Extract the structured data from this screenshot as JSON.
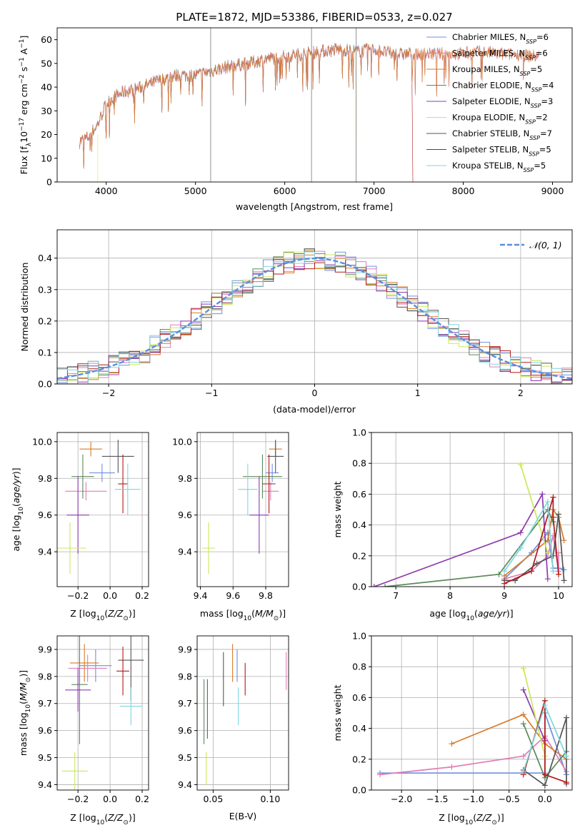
{
  "figure": {
    "title": "PLATE=1872, MJD=53386, FIBERID=0533, z=0.027"
  },
  "colors": {
    "chabrier_miles": "#6f8fe0",
    "salpeter_miles": "#e07db7",
    "kroupa_miles": "#d97a2b",
    "chabrier_elodie": "#5b8a5b",
    "salpeter_elodie": "#8e3bb0",
    "kroupa_elodie": "#c9e858",
    "chabrier_stelib": "#555555",
    "salpeter_stelib": "#b11a1a",
    "kroupa_stelib": "#7fd6dc",
    "normal_curve": "#5a8ee0",
    "grid": "#b0b0b0"
  },
  "chart_data": [
    {
      "id": "spectrum",
      "type": "line",
      "title": "PLATE=1872, MJD=53386, FIBERID=0533, z=0.027",
      "xlabel": "wavelength [Angstrom, rest frame]",
      "ylabel": "Flux [f_λ 10^-17 erg cm^-2 s^-1 A^-1]",
      "xlim": [
        3450,
        9220
      ],
      "ylim": [
        0,
        65
      ],
      "xticks": [
        4000,
        5000,
        6000,
        7000,
        8000,
        9000
      ],
      "yticks": [
        0,
        10,
        20,
        30,
        40,
        50,
        60
      ],
      "grid": false,
      "legend_position": "upper-right",
      "legend": [
        {
          "label": "Chabrier MILES, N_SSP=6",
          "key": "chabrier_miles"
        },
        {
          "label": "Salpeter MILES, N_SSP=6",
          "key": "salpeter_miles"
        },
        {
          "label": "Kroupa MILES, N_SSP=5",
          "key": "kroupa_miles"
        },
        {
          "label": "Chabrier ELODIE, N_SSP=4",
          "key": "chabrier_elodie"
        },
        {
          "label": "Salpeter ELODIE, N_SSP=3",
          "key": "salpeter_elodie"
        },
        {
          "label": "Kroupa ELODIE, N_SSP=2",
          "key": "kroupa_elodie"
        },
        {
          "label": "Chabrier STELIB, N_SSP=7",
          "key": "chabrier_stelib"
        },
        {
          "label": "Salpeter STELIB, N_SSP=5",
          "key": "salpeter_stelib"
        },
        {
          "label": "Kroupa STELIB, N_SSP=5",
          "key": "kroupa_stelib"
        }
      ],
      "continuum": {
        "x": [
          3700,
          3800,
          3900,
          4000,
          4100,
          4200,
          4400,
          4600,
          4800,
          5000,
          5200,
          5400,
          5600,
          5800,
          6000,
          6200,
          6400,
          6600,
          6800,
          7000,
          7200,
          7400,
          7600,
          7800,
          8000,
          8200,
          8400,
          8600,
          8800
        ],
        "y": [
          17,
          19,
          24,
          33,
          36,
          38,
          40,
          43,
          45,
          45,
          47,
          49,
          50,
          52,
          53,
          54,
          55,
          56,
          55,
          56,
          54,
          54,
          54,
          54,
          54,
          55,
          54,
          54,
          53
        ]
      },
      "series_ranges": {
        "miles_elodie_stelib_start": 3700,
        "elodie_end": 6800,
        "stelib_end": 7430,
        "miles_end": 8850
      }
    },
    {
      "id": "residuals",
      "type": "histogram",
      "xlabel": "(data-model)/error",
      "ylabel": "Normed distribution",
      "xlim": [
        -2.5,
        2.5
      ],
      "ylim": [
        0,
        0.49
      ],
      "xticks": [
        -2,
        -1,
        0,
        1,
        2
      ],
      "yticks": [
        0.0,
        0.1,
        0.2,
        0.3,
        0.4
      ],
      "grid": true,
      "legend_position": "upper-right",
      "legend": [
        {
          "label": "𝒩(0, 1)",
          "key": "normal_curve"
        }
      ],
      "bin_width": 0.1
    },
    {
      "id": "age_vs_Z",
      "type": "errorbar",
      "xlabel": "Z [log10(Z/Z⊙)]",
      "ylabel": "age  [log10(age/yr)]",
      "xlim": [
        -0.33,
        0.24
      ],
      "ylim": [
        9.21,
        10.05
      ],
      "xticks": [
        -0.2,
        0.0,
        0.2
      ],
      "yticks": [
        9.4,
        9.6,
        9.8,
        10.0
      ],
      "grid": true,
      "points": [
        {
          "key": "chabrier_miles",
          "x": -0.05,
          "y": 9.83,
          "xerr": 0.08,
          "yerr": 0.05
        },
        {
          "key": "salpeter_miles",
          "x": -0.15,
          "y": 9.73,
          "xerr": 0.13,
          "yerr": 0.05
        },
        {
          "key": "kroupa_miles",
          "x": -0.12,
          "y": 9.96,
          "xerr": 0.07,
          "yerr": 0.04
        },
        {
          "key": "chabrier_elodie",
          "x": -0.17,
          "y": 9.81,
          "xerr": 0.07,
          "yerr": 0.12
        },
        {
          "key": "salpeter_elodie",
          "x": -0.2,
          "y": 9.6,
          "xerr": 0.07,
          "yerr": 0.21
        },
        {
          "key": "kroupa_elodie",
          "x": -0.25,
          "y": 9.42,
          "xerr": 0.1,
          "yerr": 0.14
        },
        {
          "key": "chabrier_stelib",
          "x": 0.05,
          "y": 9.92,
          "xerr": 0.1,
          "yerr": 0.09
        },
        {
          "key": "salpeter_stelib",
          "x": 0.08,
          "y": 9.77,
          "xerr": 0.03,
          "yerr": 0.16
        },
        {
          "key": "kroupa_stelib",
          "x": 0.11,
          "y": 9.74,
          "xerr": 0.08,
          "yerr": 0.14
        }
      ]
    },
    {
      "id": "age_vs_mass",
      "type": "errorbar",
      "xlabel": "mass [log10(M/M⊙)]",
      "xlim": [
        9.38,
        9.94
      ],
      "ylim": [
        9.21,
        10.05
      ],
      "xticks": [
        9.4,
        9.6,
        9.8
      ],
      "yticks": [
        9.4,
        9.6,
        9.8,
        10.0
      ],
      "grid": true,
      "points": [
        {
          "key": "chabrier_miles",
          "x": 9.84,
          "y": 9.83,
          "xerr": 0.04,
          "yerr": 0.05
        },
        {
          "key": "salpeter_miles",
          "x": 9.83,
          "y": 9.73,
          "xerr": 0.05,
          "yerr": 0.05
        },
        {
          "key": "kroupa_miles",
          "x": 9.86,
          "y": 9.96,
          "xerr": 0.04,
          "yerr": 0.04
        },
        {
          "key": "chabrier_elodie",
          "x": 9.78,
          "y": 9.81,
          "xerr": 0.12,
          "yerr": 0.12
        },
        {
          "key": "salpeter_elodie",
          "x": 9.76,
          "y": 9.6,
          "xerr": 0.06,
          "yerr": 0.21
        },
        {
          "key": "kroupa_elodie",
          "x": 9.45,
          "y": 9.42,
          "xerr": 0.04,
          "yerr": 0.14
        },
        {
          "key": "chabrier_stelib",
          "x": 9.86,
          "y": 9.92,
          "xerr": 0.05,
          "yerr": 0.09
        },
        {
          "key": "salpeter_stelib",
          "x": 9.82,
          "y": 9.77,
          "xerr": 0.04,
          "yerr": 0.16
        },
        {
          "key": "kroupa_stelib",
          "x": 9.69,
          "y": 9.74,
          "xerr": 0.06,
          "yerr": 0.14
        }
      ]
    },
    {
      "id": "weight_vs_age",
      "type": "line",
      "xlabel": "age  [log10(age/yr)]",
      "ylabel": "mass weight",
      "xlim": [
        6.55,
        10.25
      ],
      "ylim": [
        0,
        1
      ],
      "xticks": [
        7,
        8,
        9,
        10
      ],
      "yticks": [
        0.0,
        0.2,
        0.4,
        0.6,
        0.8,
        1.0
      ],
      "grid": true,
      "series": [
        {
          "key": "chabrier_miles",
          "x": [
            9.0,
            9.5,
            9.8,
            9.9,
            10.0,
            10.1
          ],
          "y": [
            0.05,
            0.22,
            0.35,
            0.12,
            0.12,
            0.11
          ]
        },
        {
          "key": "salpeter_miles",
          "x": [
            9.0,
            9.5,
            9.8,
            9.9,
            10.0,
            10.0
          ],
          "y": [
            0.05,
            0.1,
            0.2,
            0.33,
            0.1,
            0.22
          ]
        },
        {
          "key": "kroupa_miles",
          "x": [
            9.0,
            9.8,
            9.9,
            10.0,
            10.1
          ],
          "y": [
            0.07,
            0.3,
            0.5,
            0.45,
            0.3
          ]
        },
        {
          "key": "chabrier_elodie",
          "x": [
            6.8,
            8.9,
            9.8,
            9.9
          ],
          "y": [
            0.0,
            0.08,
            0.5,
            0.42
          ]
        },
        {
          "key": "salpeter_elodie",
          "x": [
            6.6,
            9.3,
            9.7,
            9.8
          ],
          "y": [
            0.0,
            0.35,
            0.6,
            0.05
          ]
        },
        {
          "key": "kroupa_elodie",
          "x": [
            9.3,
            9.8
          ],
          "y": [
            0.79,
            0.22
          ]
        },
        {
          "key": "chabrier_stelib",
          "x": [
            9.0,
            9.2,
            9.6,
            9.9,
            10.0,
            10.1
          ],
          "y": [
            0.04,
            0.04,
            0.15,
            0.2,
            0.47,
            0.04
          ]
        },
        {
          "key": "salpeter_stelib",
          "x": [
            9.0,
            9.5,
            9.9,
            9.9,
            10.0
          ],
          "y": [
            0.02,
            0.1,
            0.58,
            0.45,
            0.08
          ]
        },
        {
          "key": "kroupa_stelib",
          "x": [
            9.0,
            9.3,
            9.8,
            9.9
          ],
          "y": [
            0.1,
            0.25,
            0.55,
            0.1
          ]
        }
      ]
    },
    {
      "id": "mass_vs_Z",
      "type": "errorbar",
      "xlabel": "Z [log10(Z/Z⊙)]",
      "ylabel": "mass [log10(M/M⊙)]",
      "xlim": [
        -0.33,
        0.24
      ],
      "ylim": [
        9.38,
        9.95
      ],
      "xticks": [
        -0.2,
        0.0,
        0.2
      ],
      "yticks": [
        9.4,
        9.5,
        9.6,
        9.7,
        9.8,
        9.9
      ],
      "grid": true,
      "points": [
        {
          "key": "chabrier_miles",
          "x": -0.09,
          "y": 9.84,
          "xerr": 0.1,
          "yerr": 0.06
        },
        {
          "key": "salpeter_miles",
          "x": -0.14,
          "y": 9.83,
          "xerr": 0.12,
          "yerr": 0.05
        },
        {
          "key": "kroupa_miles",
          "x": -0.16,
          "y": 9.85,
          "xerr": 0.09,
          "yerr": 0.07
        },
        {
          "key": "chabrier_elodie",
          "x": -0.19,
          "y": 9.77,
          "xerr": 0.05,
          "yerr": 0.22
        },
        {
          "key": "salpeter_elodie",
          "x": -0.2,
          "y": 9.75,
          "xerr": 0.08,
          "yerr": 0.08
        },
        {
          "key": "kroupa_elodie",
          "x": -0.22,
          "y": 9.45,
          "xerr": 0.08,
          "yerr": 0.07
        },
        {
          "key": "chabrier_stelib",
          "x": 0.13,
          "y": 9.86,
          "xerr": 0.08,
          "yerr": 0.15
        },
        {
          "key": "salpeter_stelib",
          "x": 0.08,
          "y": 9.82,
          "xerr": 0.04,
          "yerr": 0.09
        },
        {
          "key": "kroupa_stelib",
          "x": 0.13,
          "y": 9.69,
          "xerr": 0.07,
          "yerr": 0.07
        }
      ]
    },
    {
      "id": "mass_vs_ebv",
      "type": "errorbar",
      "xlabel": "E(B-V)",
      "xlim": [
        0.036,
        0.116
      ],
      "ylim": [
        9.38,
        9.95
      ],
      "xticks": [
        0.05,
        0.1
      ],
      "yticks": [
        9.4,
        9.5,
        9.6,
        9.7,
        9.8,
        9.9
      ],
      "grid": true,
      "points": [
        {
          "key": "chabrier_miles",
          "x": 0.071,
          "y": 9.84,
          "yerr": 0.06
        },
        {
          "key": "salpeter_miles",
          "x": 0.114,
          "y": 9.82,
          "yerr": 0.07
        },
        {
          "key": "kroupa_miles",
          "x": 0.067,
          "y": 9.85,
          "yerr": 0.07
        },
        {
          "key": "chabrier_elodie",
          "x": 0.042,
          "y": 9.67,
          "yerr": 0.12
        },
        {
          "key": "salpeter_elodie",
          "x": 0.045,
          "y": 9.68,
          "yerr": 0.11
        },
        {
          "key": "kroupa_elodie",
          "x": 0.044,
          "y": 9.46,
          "yerr": 0.06
        },
        {
          "key": "chabrier_stelib",
          "x": 0.059,
          "y": 9.79,
          "yerr": 0.1
        },
        {
          "key": "salpeter_stelib",
          "x": 0.078,
          "y": 9.79,
          "yerr": 0.06
        },
        {
          "key": "kroupa_stelib",
          "x": 0.072,
          "y": 9.69,
          "yerr": 0.07
        }
      ]
    },
    {
      "id": "weight_vs_Z",
      "type": "line",
      "xlabel": "Z [log10(Z/Z⊙)]",
      "ylabel": "mass weight",
      "xlim": [
        -2.42,
        0.38
      ],
      "ylim": [
        0,
        1
      ],
      "xticks": [
        -2.0,
        -1.5,
        -1.0,
        -0.5,
        0.0
      ],
      "yticks": [
        0.0,
        0.2,
        0.4,
        0.6,
        0.8,
        1.0
      ],
      "grid": true,
      "series": [
        {
          "key": "chabrier_miles",
          "x": [
            -2.3,
            0.0,
            0.0,
            0.3
          ],
          "y": [
            0.11,
            0.11,
            0.5,
            0.1
          ]
        },
        {
          "key": "salpeter_miles",
          "x": [
            -2.3,
            -1.3,
            -0.3,
            0.0,
            0.3
          ],
          "y": [
            0.1,
            0.15,
            0.22,
            0.35,
            0.12
          ]
        },
        {
          "key": "kroupa_miles",
          "x": [
            -1.3,
            -0.3,
            0.0,
            0.3
          ],
          "y": [
            0.3,
            0.49,
            0.3,
            0.2
          ]
        },
        {
          "key": "chabrier_elodie",
          "x": [
            -0.3,
            0.0,
            0.3
          ],
          "y": [
            0.43,
            0.08,
            0.25
          ]
        },
        {
          "key": "salpeter_elodie",
          "x": [
            -0.3,
            0.0
          ],
          "y": [
            0.65,
            0.32
          ]
        },
        {
          "key": "kroupa_elodie",
          "x": [
            -0.3,
            0.0
          ],
          "y": [
            0.79,
            0.22
          ]
        },
        {
          "key": "chabrier_stelib",
          "x": [
            -0.3,
            0.0,
            0.3,
            0.3
          ],
          "y": [
            0.13,
            0.03,
            0.47,
            0.04
          ]
        },
        {
          "key": "salpeter_stelib",
          "x": [
            -0.3,
            0.0,
            0.0,
            0.3
          ],
          "y": [
            0.1,
            0.58,
            0.1,
            0.05
          ]
        },
        {
          "key": "kroupa_stelib",
          "x": [
            -0.3,
            0.0,
            0.3
          ],
          "y": [
            0.12,
            0.55,
            0.22
          ]
        }
      ]
    }
  ]
}
